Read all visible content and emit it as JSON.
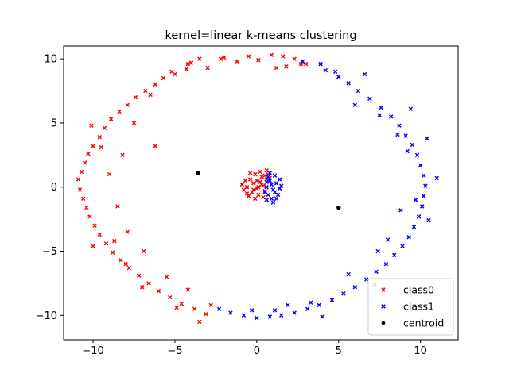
{
  "chart_data": {
    "type": "scatter",
    "title": "kernel=linear k-means clustering",
    "xlabel": "",
    "ylabel": "",
    "xlim": [
      -11.8,
      12.3
    ],
    "ylim": [
      -11.9,
      11.0
    ],
    "xticks": [
      -10,
      -5,
      0,
      5,
      10
    ],
    "yticks": [
      -10,
      -5,
      0,
      5,
      10
    ],
    "grid": false,
    "legend_position": "lower-right",
    "series": [
      {
        "name": "class0",
        "marker": "x",
        "color": "#ff0000",
        "points": [
          [
            0.9,
            10.3
          ],
          [
            1.6,
            10.2
          ],
          [
            2.3,
            10.0
          ],
          [
            2.7,
            9.6
          ],
          [
            1.2,
            9.3
          ],
          [
            -0.5,
            10.2
          ],
          [
            -1.2,
            9.8
          ],
          [
            -2.2,
            10.0
          ],
          [
            -3.5,
            10.0
          ],
          [
            -4.0,
            9.7
          ],
          [
            -4.3,
            9.2
          ],
          [
            -5.0,
            8.8
          ],
          [
            -5.7,
            8.5
          ],
          [
            -6.2,
            8.0
          ],
          [
            -6.8,
            7.5
          ],
          [
            -7.4,
            7.0
          ],
          [
            -7.9,
            6.4
          ],
          [
            -8.4,
            5.9
          ],
          [
            -8.9,
            5.3
          ],
          [
            -9.3,
            4.6
          ],
          [
            -9.6,
            3.9
          ],
          [
            -10.0,
            3.2
          ],
          [
            -10.3,
            2.6
          ],
          [
            -10.5,
            1.9
          ],
          [
            -10.7,
            1.2
          ],
          [
            -10.9,
            0.6
          ],
          [
            -10.8,
            -0.2
          ],
          [
            -10.6,
            -0.9
          ],
          [
            -10.4,
            -1.6
          ],
          [
            -10.2,
            -2.3
          ],
          [
            -9.9,
            -3.0
          ],
          [
            -9.6,
            -3.7
          ],
          [
            -9.2,
            -4.4
          ],
          [
            -8.8,
            -5.1
          ],
          [
            -8.3,
            -5.7
          ],
          [
            -7.8,
            -6.3
          ],
          [
            -7.2,
            -6.9
          ],
          [
            -6.6,
            -7.5
          ],
          [
            -6.0,
            -8.1
          ],
          [
            -5.3,
            -8.6
          ],
          [
            -4.6,
            -9.1
          ],
          [
            -3.8,
            -9.5
          ],
          [
            -3.1,
            -9.9
          ],
          [
            -3.5,
            -10.5
          ],
          [
            -2.8,
            -9.2
          ],
          [
            -6.2,
            3.2
          ],
          [
            -7.5,
            5.0
          ],
          [
            -8.2,
            2.5
          ],
          [
            -9.0,
            1.0
          ],
          [
            -8.5,
            -1.5
          ],
          [
            -7.9,
            -3.5
          ],
          [
            -6.9,
            -5.0
          ],
          [
            -5.5,
            -7.0
          ],
          [
            -4.2,
            -8.0
          ],
          [
            -10.1,
            4.8
          ],
          [
            -9.5,
            3.1
          ],
          [
            -8.7,
            -4.2
          ],
          [
            -7.0,
            -7.8
          ],
          [
            -2.0,
            10.1
          ],
          [
            0.1,
            9.9
          ],
          [
            3.0,
            9.6
          ],
          [
            -3.0,
            9.3
          ],
          [
            -5.2,
            9.0
          ],
          [
            -6.5,
            7.2
          ],
          [
            -10.0,
            -4.6
          ],
          [
            -8.0,
            -6.0
          ],
          [
            -4.9,
            -9.4
          ],
          [
            -4.2,
            9.6
          ],
          [
            1.8,
            9.4
          ],
          [
            -0.4,
            0.6
          ],
          [
            -0.2,
            0.3
          ],
          [
            0.0,
            -0.1
          ],
          [
            0.2,
            0.4
          ],
          [
            0.4,
            0.1
          ],
          [
            -0.6,
            0.0
          ],
          [
            -0.3,
            -0.4
          ],
          [
            0.1,
            -0.6
          ],
          [
            0.3,
            0.8
          ],
          [
            -0.1,
            1.0
          ],
          [
            0.5,
            -0.3
          ],
          [
            -0.7,
            0.5
          ],
          [
            -0.8,
            -0.2
          ],
          [
            0.6,
            0.6
          ],
          [
            0.2,
            1.2
          ],
          [
            -0.5,
            -0.7
          ],
          [
            0.0,
            0.5
          ],
          [
            -0.2,
            -0.2
          ],
          [
            0.4,
            -0.8
          ],
          [
            -0.9,
            0.2
          ],
          [
            0.7,
            1.0
          ],
          [
            -0.4,
            1.1
          ],
          [
            0.1,
            0.0
          ],
          [
            -0.1,
            -0.9
          ],
          [
            0.3,
            0.2
          ],
          [
            -0.6,
            -0.5
          ],
          [
            0.5,
            0.9
          ],
          [
            0.6,
            1.3
          ],
          [
            0.8,
            0.7
          ]
        ]
      },
      {
        "name": "class1",
        "marker": "x",
        "color": "#0000ff",
        "points": [
          [
            3.9,
            9.6
          ],
          [
            4.2,
            9.1
          ],
          [
            5.0,
            8.6
          ],
          [
            5.6,
            8.1
          ],
          [
            6.2,
            7.5
          ],
          [
            6.9,
            6.9
          ],
          [
            7.6,
            6.2
          ],
          [
            8.2,
            5.5
          ],
          [
            8.7,
            4.8
          ],
          [
            9.1,
            4.0
          ],
          [
            9.5,
            3.3
          ],
          [
            9.8,
            2.5
          ],
          [
            10.0,
            1.7
          ],
          [
            10.2,
            0.9
          ],
          [
            10.3,
            0.1
          ],
          [
            10.2,
            -0.7
          ],
          [
            10.1,
            -1.5
          ],
          [
            9.9,
            -2.3
          ],
          [
            9.6,
            -3.1
          ],
          [
            9.3,
            -3.9
          ],
          [
            8.9,
            -4.6
          ],
          [
            8.4,
            -5.3
          ],
          [
            7.9,
            -6.0
          ],
          [
            7.3,
            -6.6
          ],
          [
            6.7,
            -7.2
          ],
          [
            6.0,
            -7.8
          ],
          [
            5.3,
            -8.3
          ],
          [
            4.6,
            -8.8
          ],
          [
            3.8,
            -9.2
          ],
          [
            3.1,
            -9.5
          ],
          [
            2.3,
            -9.8
          ],
          [
            1.5,
            -10.0
          ],
          [
            0.8,
            -10.1
          ],
          [
            0.0,
            -10.2
          ],
          [
            -0.8,
            -10.0
          ],
          [
            -1.6,
            -9.8
          ],
          [
            -2.3,
            -9.5
          ],
          [
            4.0,
            -10.1
          ],
          [
            11.0,
            0.7
          ],
          [
            10.4,
            3.8
          ],
          [
            8.6,
            4.1
          ],
          [
            7.5,
            5.6
          ],
          [
            6.0,
            6.4
          ],
          [
            7.4,
            -5.0
          ],
          [
            8.8,
            -1.8
          ],
          [
            9.7,
            -1.0
          ],
          [
            5.6,
            -6.8
          ],
          [
            3.3,
            -9.0
          ],
          [
            1.1,
            -9.6
          ],
          [
            4.8,
            9.0
          ],
          [
            9.2,
            2.8
          ],
          [
            8.0,
            -4.1
          ],
          [
            9.4,
            6.1
          ],
          [
            2.8,
            9.8
          ],
          [
            10.5,
            -2.6
          ],
          [
            6.6,
            8.8
          ],
          [
            -0.3,
            -9.6
          ],
          [
            1.9,
            -9.2
          ],
          [
            7.2,
            -7.6
          ],
          [
            0.6,
            0.0
          ],
          [
            0.8,
            0.5
          ],
          [
            1.0,
            -0.2
          ],
          [
            0.7,
            -0.6
          ],
          [
            1.2,
            0.3
          ],
          [
            0.9,
            -0.9
          ],
          [
            1.1,
            0.9
          ],
          [
            0.5,
            -0.4
          ],
          [
            1.4,
            -0.1
          ],
          [
            0.8,
            1.1
          ],
          [
            1.3,
            -0.6
          ],
          [
            0.6,
            0.4
          ],
          [
            1.0,
            -1.2
          ],
          [
            0.7,
            0.8
          ],
          [
            1.5,
            0.1
          ],
          [
            0.9,
            0.2
          ],
          [
            1.2,
            -0.9
          ],
          [
            0.6,
            -1.0
          ],
          [
            1.4,
            0.6
          ],
          [
            1.1,
            -0.4
          ]
        ]
      },
      {
        "name": "centroid",
        "marker": "dot",
        "color": "#000000",
        "points": [
          [
            -3.6,
            1.1
          ],
          [
            5.0,
            -1.6
          ]
        ]
      }
    ]
  }
}
